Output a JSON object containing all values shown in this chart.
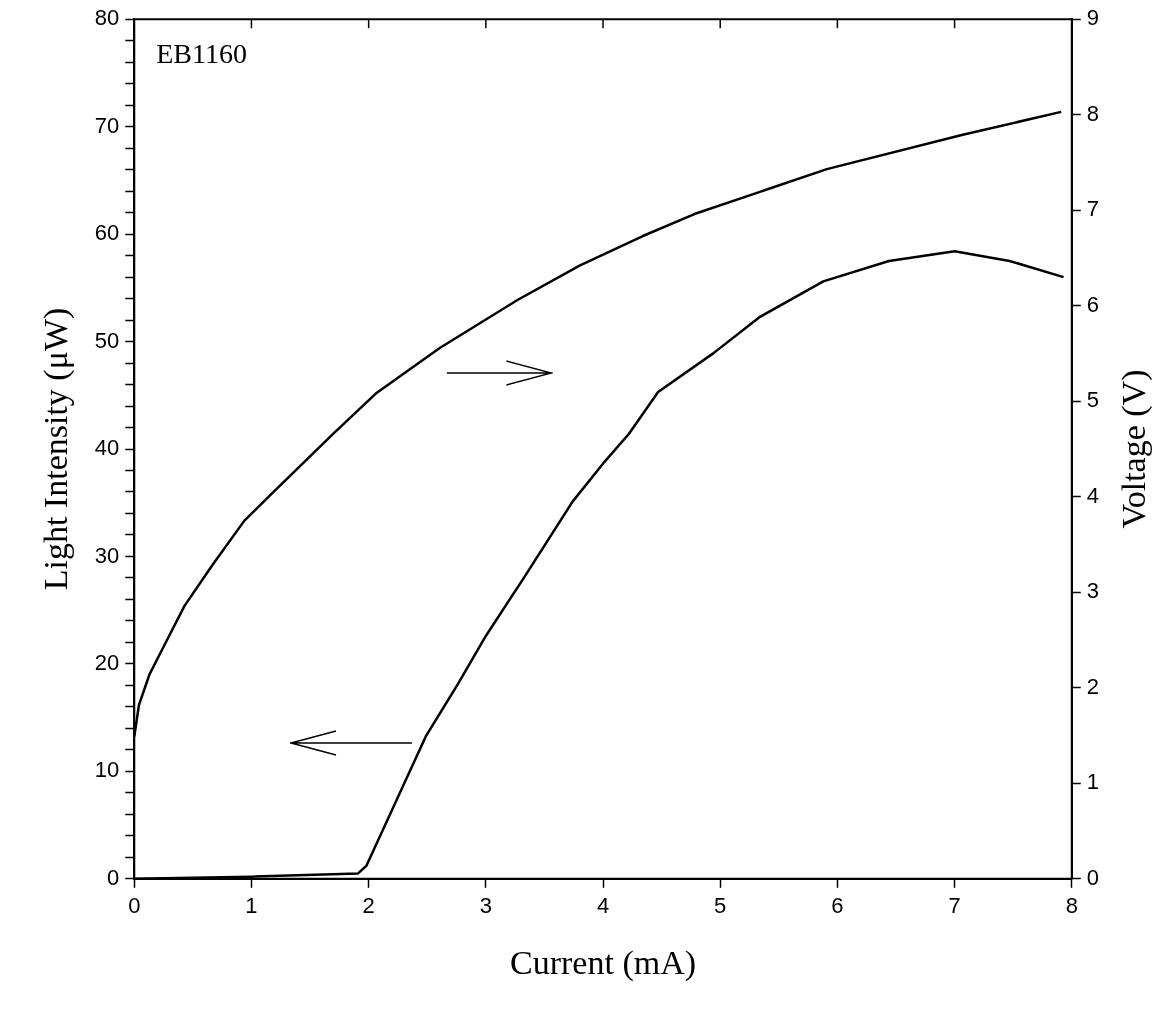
{
  "chart_data": {
    "type": "line",
    "xlabel": "Current (mA)",
    "ylabel": "Light Intensity (μW)",
    "y2label": "Voltage (V)",
    "annotations": [
      "EB1160"
    ],
    "xlim": [
      0,
      8
    ],
    "xticks": [
      0,
      1,
      2,
      3,
      4,
      5,
      6,
      7,
      8
    ],
    "ylim": [
      0,
      80
    ],
    "yticks": [
      0,
      {
        "value": 2,
        "label": null
      },
      {
        "value": 4,
        "label": null
      },
      {
        "value": 6,
        "label": null
      },
      {
        "value": 8,
        "label": null
      },
      10,
      {
        "value": 12,
        "label": null
      },
      {
        "value": 14,
        "label": null
      },
      {
        "value": 16,
        "label": null
      },
      {
        "value": 18,
        "label": null
      },
      20,
      {
        "value": 22,
        "label": null
      },
      {
        "value": 24,
        "label": null
      },
      {
        "value": 26,
        "label": null
      },
      {
        "value": 28,
        "label": null
      },
      30,
      {
        "value": 32,
        "label": null
      },
      {
        "value": 34,
        "label": null
      },
      {
        "value": 36,
        "label": null
      },
      {
        "value": 38,
        "label": null
      },
      40,
      {
        "value": 42,
        "label": null
      },
      {
        "value": 44,
        "label": null
      },
      {
        "value": 46,
        "label": null
      },
      {
        "value": 48,
        "label": null
      },
      50,
      {
        "value": 52,
        "label": null
      },
      {
        "value": 54,
        "label": null
      },
      {
        "value": 56,
        "label": null
      },
      {
        "value": 58,
        "label": null
      },
      60,
      {
        "value": 62,
        "label": null
      },
      {
        "value": 64,
        "label": null
      },
      {
        "value": 66,
        "label": null
      },
      {
        "value": 68,
        "label": null
      },
      70,
      {
        "value": 72,
        "label": null
      },
      {
        "value": 74,
        "label": null
      },
      {
        "value": 76,
        "label": null
      },
      {
        "value": 78,
        "label": null
      },
      80
    ],
    "y2lim": [
      0,
      9
    ],
    "y2ticks": [
      0,
      1,
      2,
      3,
      4,
      5,
      6,
      7,
      8,
      9
    ],
    "grid": false,
    "legend": false,
    "marker": "none",
    "line_style": "solid",
    "series": [
      {
        "color": "#000000",
        "x": [
          0,
          0.04,
          0.13,
          0.25,
          0.43,
          0.67,
          0.94,
          1.18,
          1.48,
          1.69,
          2.07,
          2.61,
          3.27,
          3.8,
          4.34,
          4.78,
          5.91,
          7.07,
          7.91
        ],
        "values": [
          1.49,
          1.82,
          2.14,
          2.43,
          2.86,
          3.29,
          3.75,
          4.04,
          4.4,
          4.65,
          5.09,
          5.56,
          6.06,
          6.42,
          6.73,
          6.96,
          7.43,
          7.79,
          8.03
        ],
        "axis": "y2"
      },
      {
        "color": "#000000",
        "x": [
          0,
          1,
          1.91,
          1.98,
          2.22,
          2.49,
          2.76,
          3,
          3.33,
          3.74,
          4.02,
          4.22,
          4.47,
          4.94,
          5.34,
          5.88,
          6.44,
          7,
          7.47,
          7.93
        ],
        "values": [
          0,
          0.2,
          0.5,
          1.2,
          6.9,
          13.3,
          18.1,
          22.6,
          28.1,
          35.1,
          38.9,
          41.4,
          45.3,
          48.9,
          52.3,
          55.6,
          57.5,
          58.4,
          57.5,
          56
        ],
        "axis": "y"
      }
    ]
  }
}
